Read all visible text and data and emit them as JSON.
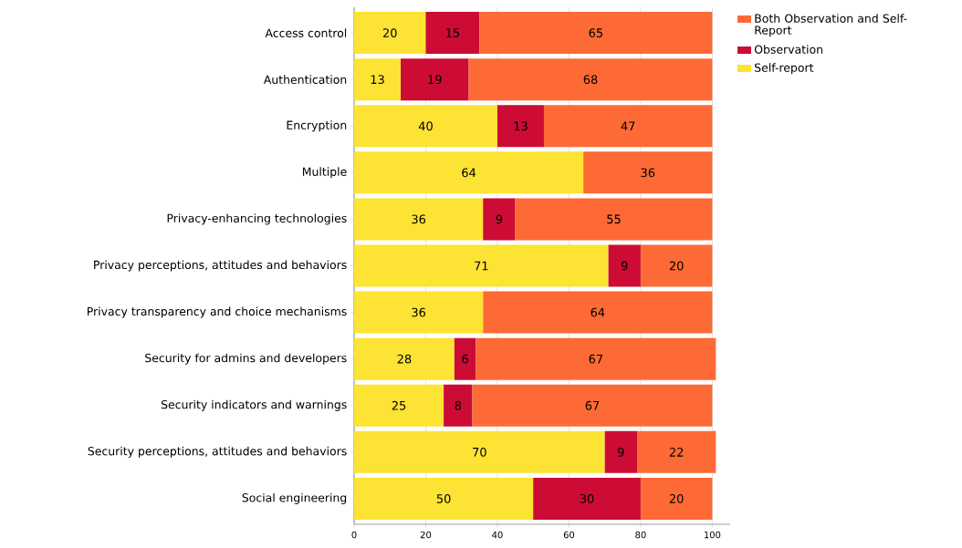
{
  "chart_data": {
    "type": "bar",
    "orientation": "horizontal",
    "stacked": true,
    "data_labels": true,
    "grid": "x",
    "legend": "top right",
    "categories": [
      "Access control",
      "Authentication",
      "Encryption",
      "Multiple",
      "Privacy-enhancing technologies",
      "Privacy perceptions, attitudes and behaviors",
      "Privacy transparency and choice mechanisms",
      "Security for admins and developers",
      "Security indicators and warnings",
      "Security perceptions, attitudes and behaviors",
      "Social engineering"
    ],
    "series": [
      {
        "name": "Self-report",
        "color": "#fde333",
        "values": [
          20,
          13,
          40,
          64,
          36,
          71,
          36,
          28,
          25,
          70,
          50
        ]
      },
      {
        "name": "Observation",
        "color": "#cc0c35",
        "values": [
          15,
          19,
          13,
          null,
          9,
          9,
          null,
          6,
          8,
          9,
          30
        ]
      },
      {
        "name": "Both Observation and Self-Report",
        "color": "#fe6a35",
        "values": [
          65,
          68,
          47,
          36,
          55,
          20,
          64,
          67,
          67,
          22,
          20
        ]
      }
    ],
    "xlim": [
      0,
      105
    ],
    "xticks": [
      0,
      20,
      40,
      60,
      80,
      100
    ]
  }
}
